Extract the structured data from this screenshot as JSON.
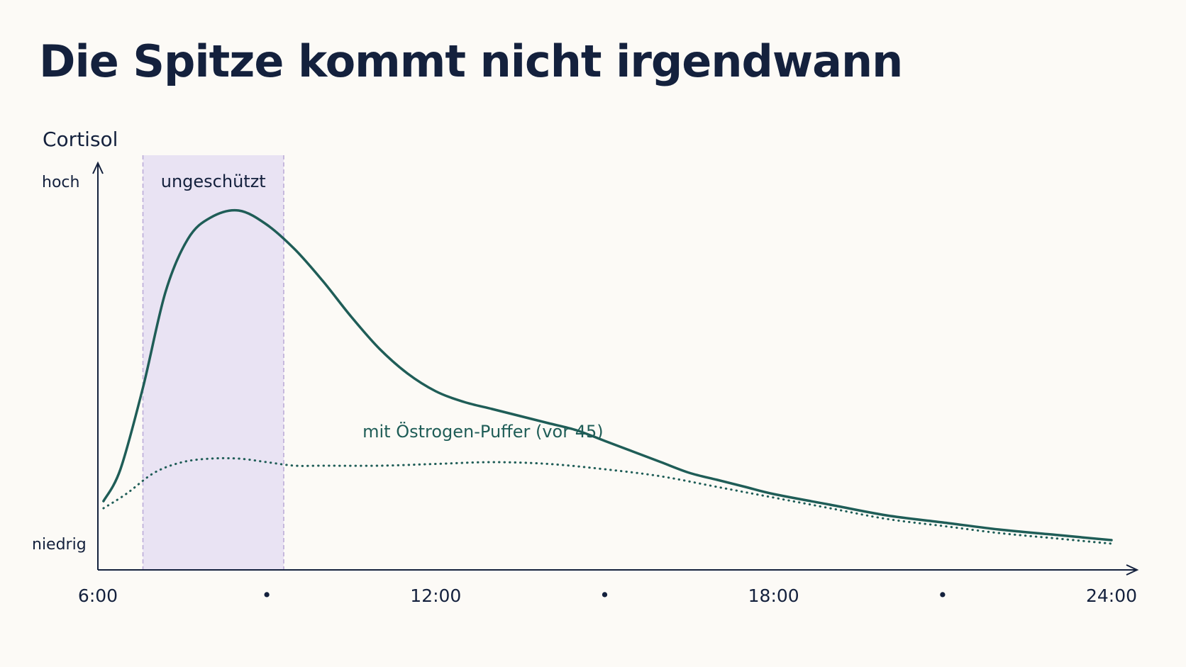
{
  "chart_data": {
    "type": "line",
    "title": "Die Spitze kommt nicht irgendwann",
    "ylabel": "Cortisol",
    "y_ticks": {
      "high": "hoch",
      "low": "niedrig"
    },
    "x_ticks": [
      {
        "value": 6,
        "label": "6:00"
      },
      {
        "value": 9,
        "label": "•"
      },
      {
        "value": 12,
        "label": "12:00"
      },
      {
        "value": 15,
        "label": "•"
      },
      {
        "value": 18,
        "label": "18:00"
      },
      {
        "value": 21,
        "label": "•"
      },
      {
        "value": 24,
        "label": "24:00"
      }
    ],
    "xlim": [
      6,
      24.5
    ],
    "ylim": [
      0,
      100
    ],
    "grid": false,
    "band": {
      "x_start": 6.8,
      "x_end": 9.3,
      "label": "ungeschützt",
      "color": "#e9e3f3",
      "border": "#b8a8d6"
    },
    "series": [
      {
        "style": "solid",
        "color": "#1f5d57",
        "x": [
          6.1,
          6.4,
          6.8,
          7.2,
          7.6,
          8.0,
          8.5,
          9.0,
          9.5,
          10.0,
          10.5,
          11.0,
          11.5,
          12.0,
          12.5,
          13.0,
          13.5,
          14.0,
          14.5,
          15.0,
          15.5,
          16.0,
          16.5,
          17.0,
          17.5,
          18.0,
          19.0,
          20.0,
          21.0,
          22.0,
          23.0,
          24.0
        ],
        "values": [
          13,
          22,
          45,
          72,
          87,
          93,
          95,
          91,
          84,
          75,
          65,
          56,
          49,
          44,
          41,
          39,
          37,
          35,
          33,
          30,
          27,
          24,
          21,
          19,
          17,
          15,
          12,
          9,
          7,
          5,
          3.5,
          2
        ]
      },
      {
        "name": "mit Östrogen-Puffer (vor 45)",
        "style": "dotted",
        "color": "#1f5d57",
        "x": [
          6.1,
          6.5,
          7.0,
          7.5,
          8.0,
          8.5,
          9.0,
          9.5,
          10.0,
          11.0,
          12.0,
          13.0,
          14.0,
          15.0,
          16.0,
          17.0,
          18.0,
          19.0,
          20.0,
          21.0,
          22.0,
          23.0,
          24.0
        ],
        "values": [
          11,
          15,
          21,
          24,
          25,
          25,
          24,
          23,
          23,
          23,
          23.5,
          24,
          23.5,
          22,
          20,
          17,
          14,
          11,
          8,
          6,
          4,
          2.5,
          1
        ]
      }
    ],
    "series_label_position": {
      "x": 10.7,
      "y": 31
    }
  }
}
